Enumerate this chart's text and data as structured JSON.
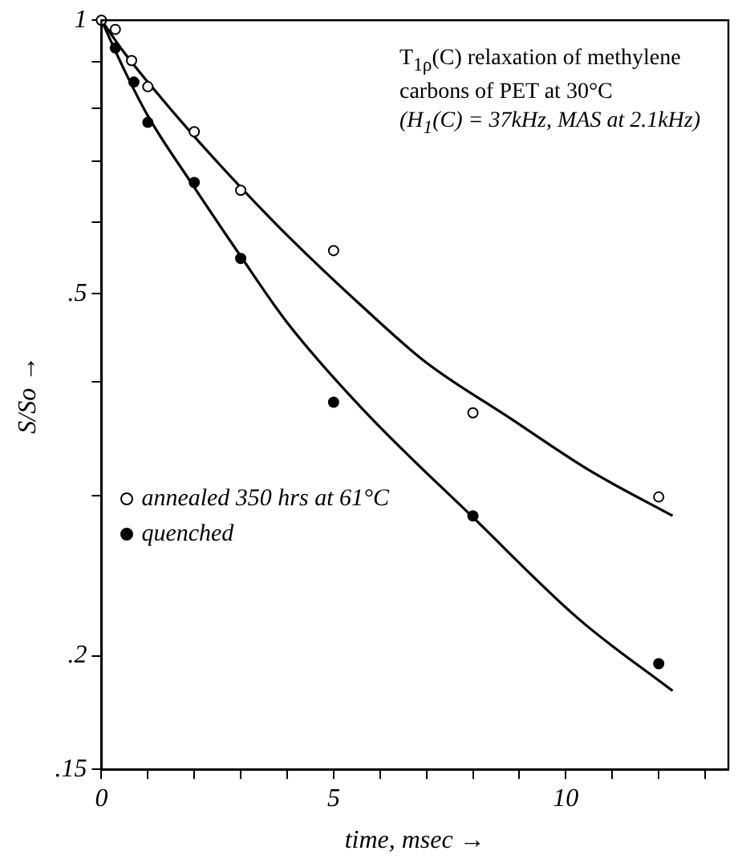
{
  "chart_data": {
    "type": "scatter",
    "title": "T$_{1ρ}$(C) relaxation of methylene carbons of PET at 30°C",
    "subtitle": "(H$_{1}$(C) = 37kHz, MAS at 2.1kHz)",
    "xlabel": "time, msec →",
    "ylabel": "S/So →",
    "log": "y",
    "xlim": [
      0,
      13.5
    ],
    "xticks": [
      0,
      {
        "value": 1,
        "label": null
      },
      {
        "value": 2,
        "label": null
      },
      {
        "value": 3,
        "label": null
      },
      {
        "value": 4,
        "label": null
      },
      5,
      {
        "value": 6,
        "label": null
      },
      {
        "value": 7,
        "label": null
      },
      {
        "value": 8,
        "label": null
      },
      {
        "value": 9,
        "label": null
      },
      10,
      {
        "value": 11,
        "label": null
      },
      {
        "value": 12,
        "label": null
      },
      {
        "value": 13,
        "label": null
      }
    ],
    "ylim": [
      0.15,
      1
    ],
    "yticks": [
      {
        "value": 0.15,
        "label": ".15"
      },
      {
        "value": 0.2,
        "label": ".2"
      },
      {
        "value": 0.3,
        "label": null
      },
      {
        "value": 0.4,
        "label": null
      },
      {
        "value": 0.5,
        "label": ".5"
      },
      {
        "value": 0.6,
        "label": null
      },
      {
        "value": 0.7,
        "label": null
      },
      {
        "value": 0.8,
        "label": null
      },
      {
        "value": 0.9,
        "label": null
      },
      1
    ],
    "grid": false,
    "legend": "bottom left",
    "marker": "circle",
    "series": [
      {
        "name": "annealed 350 hrs at 61°C",
        "color": "#ffffff",
        "x": [
          0,
          0.3,
          0.65,
          1,
          2,
          3,
          5,
          8,
          12
        ],
        "values": [
          1,
          0.977,
          0.903,
          0.845,
          0.754,
          0.65,
          0.558,
          0.37,
          0.299
        ]
      },
      {
        "name": "quenched",
        "color": "#000000",
        "x": [
          0.3,
          0.7,
          1,
          2,
          3,
          5,
          8,
          12
        ],
        "values": [
          0.932,
          0.855,
          0.772,
          0.663,
          0.547,
          0.38,
          0.285,
          0.196
        ]
      },
      {
        "type": "line",
        "marker": "none",
        "color": "#000000",
        "x": [
          0,
          0.5,
          1,
          2,
          3,
          4,
          5.7,
          7,
          8.8,
          10.5,
          12.3
        ],
        "values": [
          1,
          0.92,
          0.855,
          0.745,
          0.655,
          0.58,
          0.48,
          0.42,
          0.365,
          0.32,
          0.285
        ]
      },
      {
        "type": "line",
        "marker": "none",
        "color": "#000000",
        "x": [
          0,
          0.5,
          1,
          2,
          3,
          4,
          5.7,
          8,
          10.3,
          12.3
        ],
        "values": [
          1,
          0.88,
          0.785,
          0.655,
          0.55,
          0.465,
          0.37,
          0.284,
          0.219,
          0.183
        ]
      }
    ]
  }
}
